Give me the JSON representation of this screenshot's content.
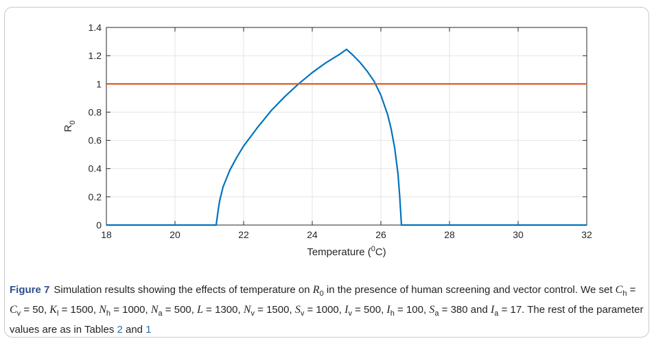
{
  "chart_data": {
    "type": "line",
    "xlabel_main": "Temperature (",
    "xlabel_sup": "0",
    "xlabel_end": "C)",
    "ylabel_main": "R",
    "ylabel_sub": "0",
    "xlim": [
      18,
      32
    ],
    "ylim": [
      0,
      1.4
    ],
    "xticks": [
      "18",
      "20",
      "22",
      "24",
      "26",
      "28",
      "30",
      "32"
    ],
    "yticks": [
      "0",
      "0.2",
      "0.4",
      "0.6",
      "0.8",
      "1",
      "1.2",
      "1.4"
    ],
    "grid": true,
    "series": [
      {
        "color": "#0072bd",
        "x": [
          18,
          21.2,
          21.25,
          21.3,
          21.4,
          21.6,
          21.8,
          22.0,
          22.4,
          22.8,
          23.2,
          23.6,
          24.0,
          24.4,
          24.8,
          25.0,
          25.2,
          25.4,
          25.6,
          25.8,
          26.0,
          26.2,
          26.3,
          26.4,
          26.5,
          26.55,
          26.6,
          32
        ],
        "y": [
          0,
          0,
          0.09,
          0.17,
          0.27,
          0.39,
          0.48,
          0.56,
          0.69,
          0.81,
          0.91,
          1.0,
          1.08,
          1.15,
          1.21,
          1.245,
          1.2,
          1.15,
          1.09,
          1.02,
          0.92,
          0.78,
          0.68,
          0.55,
          0.36,
          0.2,
          0,
          0
        ]
      },
      {
        "color": "#d95319",
        "x": [
          18,
          32
        ],
        "y": [
          1,
          1
        ]
      }
    ]
  },
  "caption": {
    "figure_label": "Figure 7",
    "text_1": "Simulation results showing the effects of temperature on ",
    "r0_symbol": "R",
    "r0_sub": "0",
    "text_2": " in the presence of human screening and vector control. We set ",
    "params_1": "C",
    "params_line": "h = C v = 50, K l = 1500, N h = 1000, N a = 500, L = 1300, N v = 1500, S v = 1000, I v = 500, I h = 100, S a = 380 and I a = 17.",
    "text_3": " The rest of the parameter values are as in Tables ",
    "table_ref_1": "2",
    "text_and": " and ",
    "table_ref_2": "1"
  }
}
